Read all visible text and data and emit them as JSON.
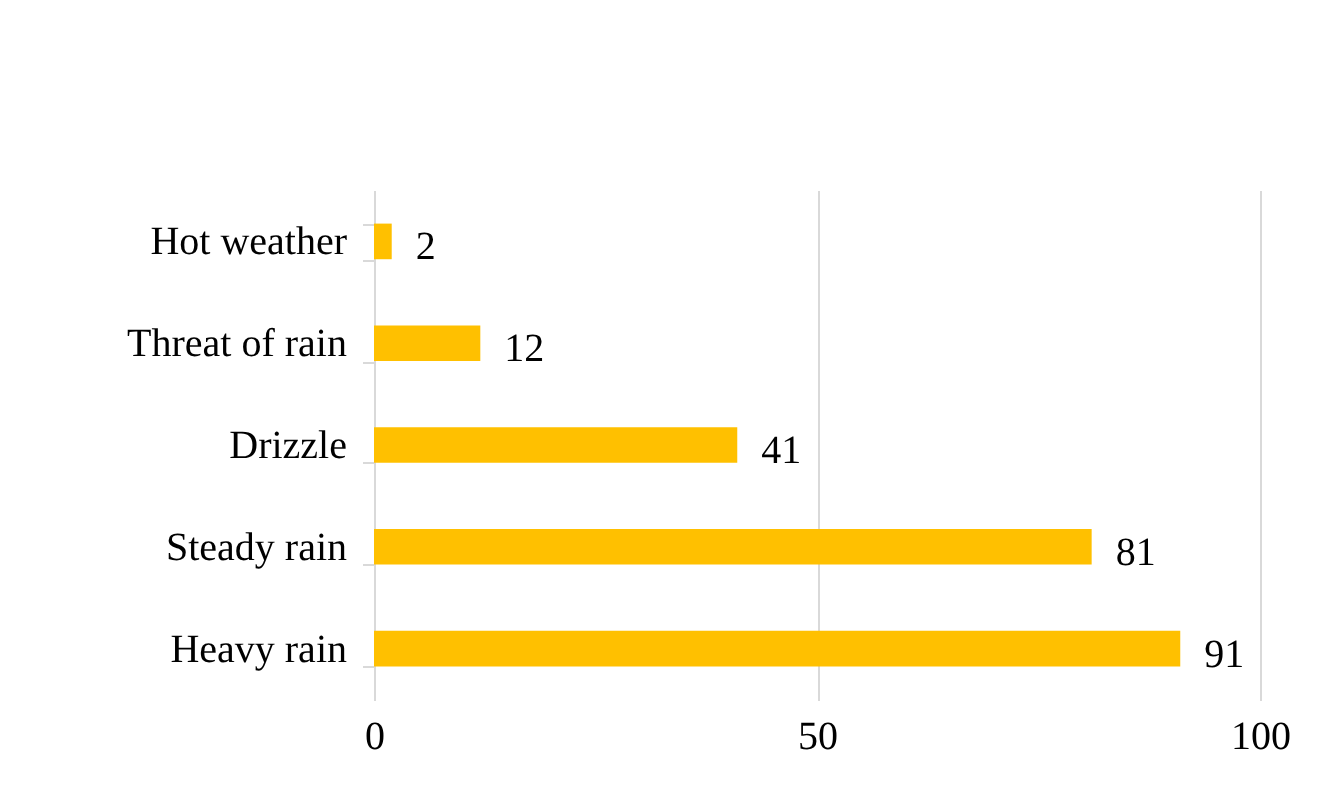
{
  "chart_data": {
    "type": "bar",
    "orientation": "horizontal",
    "categories": [
      "Hot weather",
      "Threat of rain",
      "Drizzle",
      "Steady rain",
      "Heavy rain"
    ],
    "values": [
      2,
      12,
      41,
      81,
      91
    ],
    "color": "#ffc000",
    "xlim": [
      0,
      100
    ],
    "xticks": [
      0,
      50,
      100
    ],
    "grid": "x",
    "data_labels": true
  }
}
